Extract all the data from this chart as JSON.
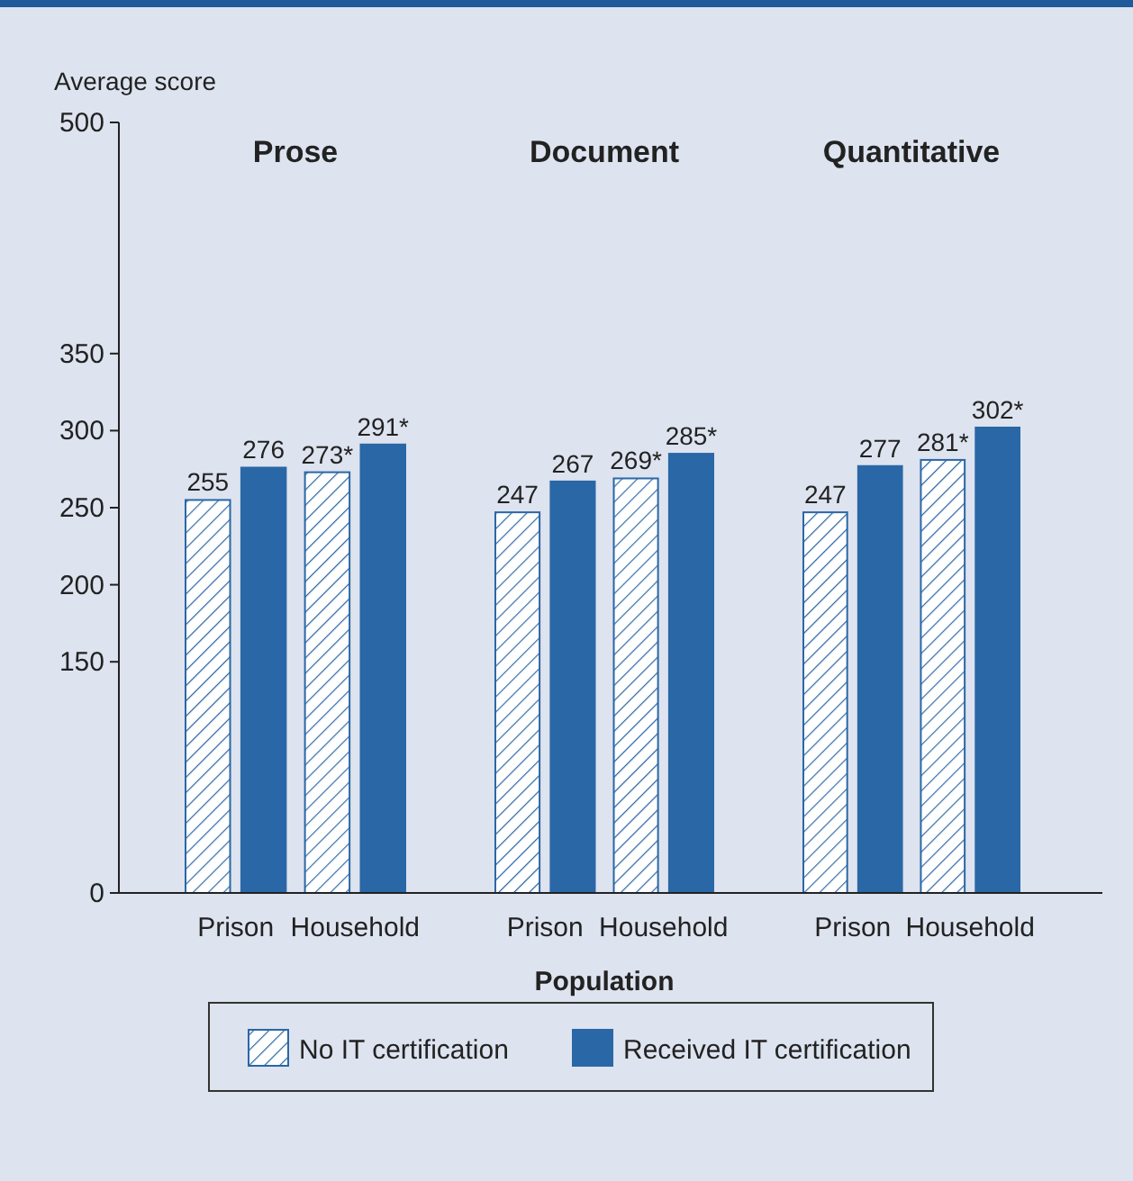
{
  "chart_data": [
    {
      "type": "bar",
      "title": "Prose",
      "ylabel": "Average score",
      "categories": [
        "Prison",
        "Household"
      ],
      "ylim": [
        0,
        500
      ],
      "yticks": [
        0,
        150,
        200,
        250,
        300,
        350,
        500
      ],
      "legend": "bottom",
      "series": [
        {
          "name": "No IT certification",
          "color": "#2a67a6",
          "values": [
            255,
            273
          ],
          "value_labels": [
            "255",
            "273*"
          ]
        },
        {
          "name": "Received IT certification",
          "color": "#2a67a6",
          "values": [
            276,
            291
          ],
          "value_labels": [
            "276",
            "291*"
          ]
        }
      ]
    },
    {
      "type": "bar",
      "title": "Document",
      "xlabel": "Population",
      "categories": [
        "Prison",
        "Household"
      ],
      "tick_labels": "x",
      "series": [
        {
          "color": "#2a67a6",
          "values": [
            247,
            269
          ],
          "value_labels": [
            "247",
            "269*"
          ]
        },
        {
          "color": "#2a67a6",
          "values": [
            267,
            285
          ],
          "value_labels": [
            "267",
            "285*"
          ]
        }
      ]
    },
    {
      "type": "bar",
      "title": "Quantitative",
      "categories": [
        "Prison",
        "Household"
      ],
      "tick_labels": "x",
      "series": [
        {
          "color": "#2a67a6",
          "values": [
            247,
            281
          ],
          "value_labels": [
            "247",
            "281*"
          ]
        },
        {
          "color": "#2a67a6",
          "values": [
            277,
            302
          ],
          "value_labels": [
            "277",
            "302*"
          ]
        }
      ]
    }
  ]
}
